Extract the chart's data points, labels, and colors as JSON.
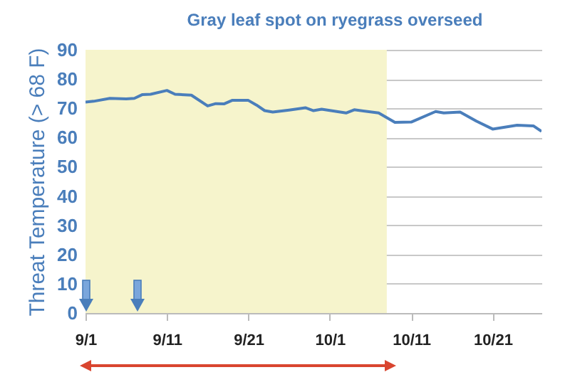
{
  "chart_data": {
    "type": "line",
    "title": "Gray leaf spot on ryegrass overseed",
    "ylabel": "Threat Temperature (> 68 F)",
    "x": [
      "--09-01",
      "--09-02",
      "--09-04",
      "--09-06",
      "--09-07",
      "--09-08",
      "--09-09",
      "--09-11",
      "--09-12",
      "--09-14",
      "--09-16",
      "--09-17",
      "--09-18",
      "--09-19",
      "--09-21",
      "--09-22",
      "--09-23",
      "--09-24",
      "--09-26",
      "--09-28",
      "--09-29",
      "--09-30",
      "--10-03",
      "--10-04",
      "--10-07",
      "--10-09",
      "--10-11",
      "--10-14",
      "--10-15",
      "--10-17",
      "--10-19",
      "--10-21",
      "--10-24",
      "--10-26",
      "--10-27"
    ],
    "series": [
      {
        "color": "#4a7ebb",
        "values": [
          72.1,
          72.4,
          73.4,
          73.2,
          73.4,
          74.7,
          74.8,
          76.1,
          74.8,
          74.5,
          70.8,
          71.6,
          71.5,
          72.7,
          72.7,
          71.1,
          69.2,
          68.7,
          69.4,
          70.2,
          69.2,
          69.7,
          68.4,
          69.5,
          68.4,
          65.2,
          65.3,
          68.9,
          68.4,
          68.7,
          65.6,
          62.9,
          64.2,
          64.0,
          62.1
        ]
      }
    ],
    "xlim": [
      "--09-01",
      "--10-27"
    ],
    "xticks": [
      {
        "value": "--09-01",
        "label": "9/1"
      },
      {
        "value": "--09-11",
        "label": "9/11"
      },
      {
        "value": "--09-21",
        "label": "9/21"
      },
      {
        "value": "--10-01",
        "label": "10/1"
      },
      {
        "value": "--10-11",
        "label": "10/11"
      },
      {
        "value": "--10-21",
        "label": "10/21"
      }
    ],
    "ylim": [
      0,
      90
    ],
    "yticks": [
      0,
      10,
      20,
      30,
      40,
      50,
      60,
      70,
      80,
      90
    ],
    "bands": [
      {
        "axis": "x",
        "from": "--09-01",
        "to": "--10-08",
        "color": "#f6f4cc"
      }
    ],
    "grid": "y",
    "marker": "none",
    "line_style": "solid"
  }
}
